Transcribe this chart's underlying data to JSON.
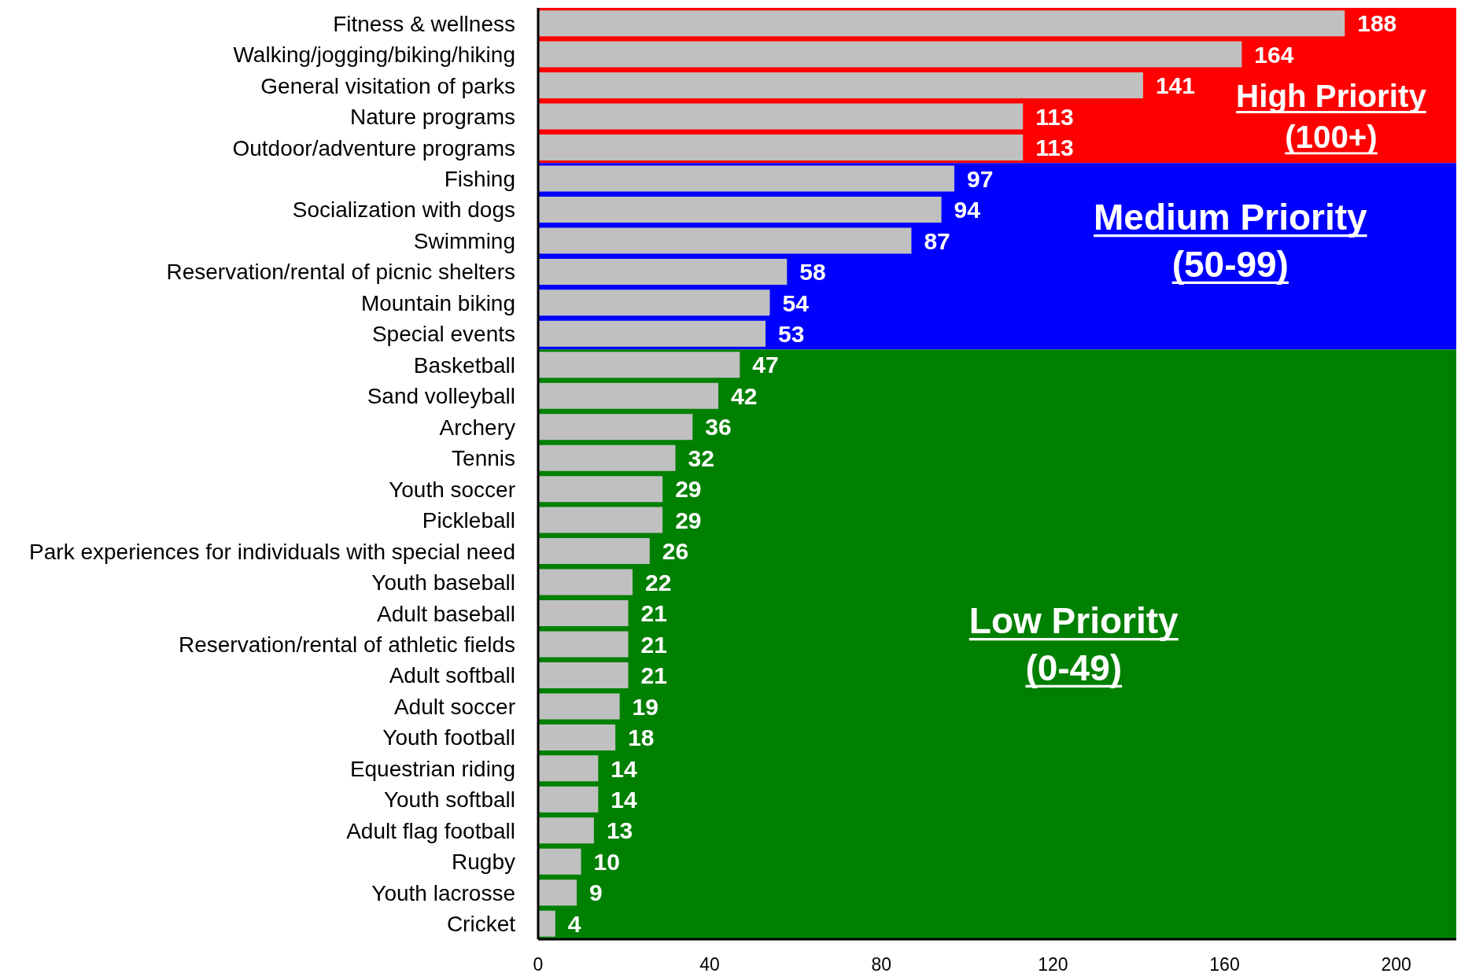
{
  "chart_data": {
    "type": "bar",
    "orientation": "horizontal",
    "categories": [
      "Fitness & wellness",
      "Walking/jogging/biking/hiking",
      "General visitation of parks",
      "Nature programs",
      "Outdoor/adventure programs",
      "Fishing",
      "Socialization with dogs",
      "Swimming",
      "Reservation/rental of picnic shelters",
      "Mountain biking",
      "Special events",
      "Basketball",
      "Sand volleyball",
      "Archery",
      "Tennis",
      "Youth soccer",
      "Pickleball",
      "Park experiences for individuals with special need",
      "Youth baseball",
      "Adult baseball",
      "Reservation/rental of athletic fields",
      "Adult softball",
      "Adult soccer",
      "Youth football",
      "Equestrian riding",
      "Youth softball",
      "Adult flag football",
      "Rugby",
      "Youth lacrosse",
      "Cricket"
    ],
    "values": [
      188,
      164,
      141,
      113,
      113,
      97,
      94,
      87,
      58,
      54,
      53,
      47,
      42,
      36,
      32,
      29,
      29,
      26,
      22,
      21,
      21,
      21,
      19,
      18,
      14,
      14,
      13,
      10,
      9,
      4
    ],
    "color": "#c0c0c0",
    "xlim": [
      0,
      214
    ],
    "xticks": [
      0,
      40,
      80,
      120,
      160,
      200
    ],
    "data_labels": true,
    "bands": [
      {
        "axis": "y",
        "from": "Fitness & wellness",
        "to": "Outdoor/adventure programs",
        "label": "High Priority\n(100+)",
        "color": "#ff0000"
      },
      {
        "axis": "y",
        "from": "Fishing",
        "to": "Special events",
        "label": "Medium Priority\n(50-99)",
        "color": "#0000ff"
      },
      {
        "axis": "y",
        "from": "Basketball",
        "to": "Cricket",
        "label": "Low Priority\n(0-49)",
        "color": "#008000"
      }
    ]
  }
}
